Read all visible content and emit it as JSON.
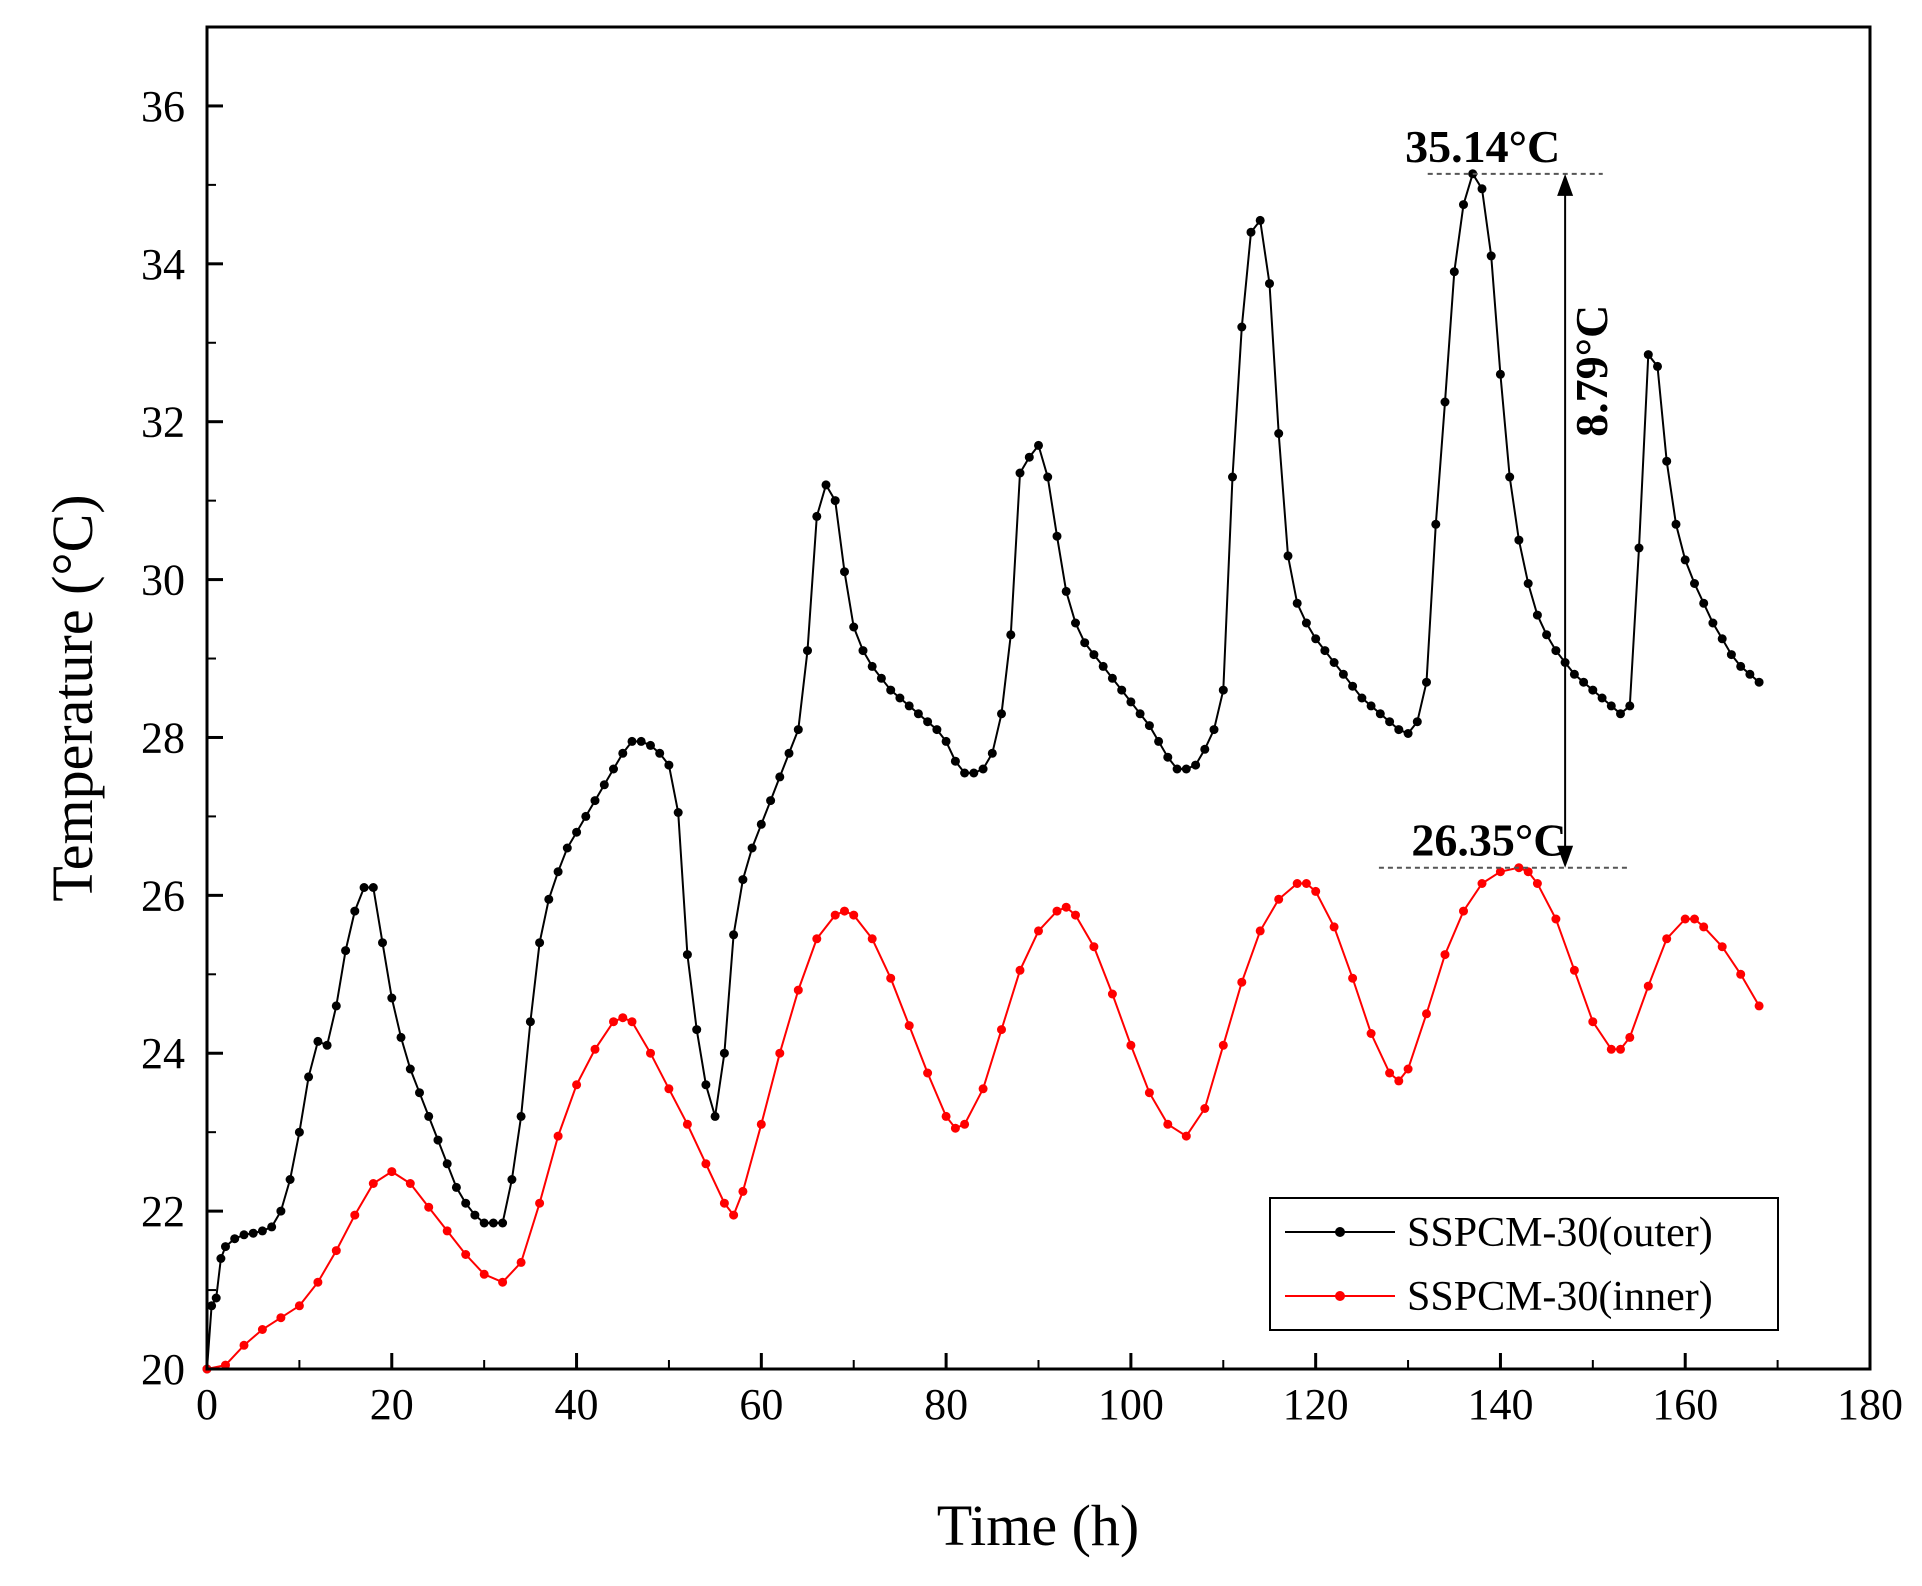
{
  "chart_data": {
    "type": "line",
    "title": "",
    "xlabel": "Time (h)",
    "ylabel": "Temperature (°C)",
    "xlim": [
      0,
      180
    ],
    "ylim": [
      20,
      37
    ],
    "xticks": [
      0,
      20,
      40,
      60,
      80,
      100,
      120,
      140,
      160,
      180
    ],
    "yticks": [
      20,
      22,
      24,
      26,
      28,
      30,
      32,
      34,
      36
    ],
    "grid": false,
    "legend_position": "bottom-right",
    "series": [
      {
        "name": "SSPCM-30(outer)",
        "color": "#000000",
        "points": [
          [
            0,
            20.0
          ],
          [
            0.5,
            20.8
          ],
          [
            1,
            20.9
          ],
          [
            1.5,
            21.4
          ],
          [
            2,
            21.55
          ],
          [
            3,
            21.65
          ],
          [
            4,
            21.7
          ],
          [
            5,
            21.72
          ],
          [
            6,
            21.75
          ],
          [
            7,
            21.8
          ],
          [
            8,
            22.0
          ],
          [
            9,
            22.4
          ],
          [
            10,
            23.0
          ],
          [
            11,
            23.7
          ],
          [
            12,
            24.15
          ],
          [
            13,
            24.1
          ],
          [
            14,
            24.6
          ],
          [
            15,
            25.3
          ],
          [
            16,
            25.8
          ],
          [
            17,
            26.1
          ],
          [
            18,
            26.1
          ],
          [
            19,
            25.4
          ],
          [
            20,
            24.7
          ],
          [
            21,
            24.2
          ],
          [
            22,
            23.8
          ],
          [
            23,
            23.5
          ],
          [
            24,
            23.2
          ],
          [
            25,
            22.9
          ],
          [
            26,
            22.6
          ],
          [
            27,
            22.3
          ],
          [
            28,
            22.1
          ],
          [
            29,
            21.95
          ],
          [
            30,
            21.85
          ],
          [
            31,
            21.85
          ],
          [
            32,
            21.85
          ],
          [
            33,
            22.4
          ],
          [
            34,
            23.2
          ],
          [
            35,
            24.4
          ],
          [
            36,
            25.4
          ],
          [
            37,
            25.95
          ],
          [
            38,
            26.3
          ],
          [
            39,
            26.6
          ],
          [
            40,
            26.8
          ],
          [
            41,
            27.0
          ],
          [
            42,
            27.2
          ],
          [
            43,
            27.4
          ],
          [
            44,
            27.6
          ],
          [
            45,
            27.8
          ],
          [
            46,
            27.95
          ],
          [
            47,
            27.95
          ],
          [
            48,
            27.9
          ],
          [
            49,
            27.8
          ],
          [
            50,
            27.65
          ],
          [
            51,
            27.05
          ],
          [
            52,
            25.25
          ],
          [
            53,
            24.3
          ],
          [
            54,
            23.6
          ],
          [
            55,
            23.2
          ],
          [
            56,
            24.0
          ],
          [
            57,
            25.5
          ],
          [
            58,
            26.2
          ],
          [
            59,
            26.6
          ],
          [
            60,
            26.9
          ],
          [
            61,
            27.2
          ],
          [
            62,
            27.5
          ],
          [
            63,
            27.8
          ],
          [
            64,
            28.1
          ],
          [
            65,
            29.1
          ],
          [
            66,
            30.8
          ],
          [
            67,
            31.2
          ],
          [
            68,
            31.0
          ],
          [
            69,
            30.1
          ],
          [
            70,
            29.4
          ],
          [
            71,
            29.1
          ],
          [
            72,
            28.9
          ],
          [
            73,
            28.75
          ],
          [
            74,
            28.6
          ],
          [
            75,
            28.5
          ],
          [
            76,
            28.4
          ],
          [
            77,
            28.3
          ],
          [
            78,
            28.2
          ],
          [
            79,
            28.1
          ],
          [
            80,
            27.95
          ],
          [
            81,
            27.7
          ],
          [
            82,
            27.55
          ],
          [
            83,
            27.55
          ],
          [
            84,
            27.6
          ],
          [
            85,
            27.8
          ],
          [
            86,
            28.3
          ],
          [
            87,
            29.3
          ],
          [
            88,
            31.35
          ],
          [
            89,
            31.55
          ],
          [
            90,
            31.7
          ],
          [
            91,
            31.3
          ],
          [
            92,
            30.55
          ],
          [
            93,
            29.85
          ],
          [
            94,
            29.45
          ],
          [
            95,
            29.2
          ],
          [
            96,
            29.05
          ],
          [
            97,
            28.9
          ],
          [
            98,
            28.75
          ],
          [
            99,
            28.6
          ],
          [
            100,
            28.45
          ],
          [
            101,
            28.3
          ],
          [
            102,
            28.15
          ],
          [
            103,
            27.95
          ],
          [
            104,
            27.75
          ],
          [
            105,
            27.6
          ],
          [
            106,
            27.6
          ],
          [
            107,
            27.65
          ],
          [
            108,
            27.85
          ],
          [
            109,
            28.1
          ],
          [
            110,
            28.6
          ],
          [
            111,
            31.3
          ],
          [
            112,
            33.2
          ],
          [
            113,
            34.4
          ],
          [
            114,
            34.55
          ],
          [
            115,
            33.75
          ],
          [
            116,
            31.85
          ],
          [
            117,
            30.3
          ],
          [
            118,
            29.7
          ],
          [
            119,
            29.45
          ],
          [
            120,
            29.25
          ],
          [
            121,
            29.1
          ],
          [
            122,
            28.95
          ],
          [
            123,
            28.8
          ],
          [
            124,
            28.65
          ],
          [
            125,
            28.5
          ],
          [
            126,
            28.4
          ],
          [
            127,
            28.3
          ],
          [
            128,
            28.2
          ],
          [
            129,
            28.1
          ],
          [
            130,
            28.05
          ],
          [
            131,
            28.2
          ],
          [
            132,
            28.7
          ],
          [
            133,
            30.7
          ],
          [
            134,
            32.25
          ],
          [
            135,
            33.9
          ],
          [
            136,
            34.75
          ],
          [
            137,
            35.14
          ],
          [
            138,
            34.95
          ],
          [
            139,
            34.1
          ],
          [
            140,
            32.6
          ],
          [
            141,
            31.3
          ],
          [
            142,
            30.5
          ],
          [
            143,
            29.95
          ],
          [
            144,
            29.55
          ],
          [
            145,
            29.3
          ],
          [
            146,
            29.1
          ],
          [
            147,
            28.95
          ],
          [
            148,
            28.8
          ],
          [
            149,
            28.7
          ],
          [
            150,
            28.6
          ],
          [
            151,
            28.5
          ],
          [
            152,
            28.4
          ],
          [
            153,
            28.3
          ],
          [
            154,
            28.4
          ],
          [
            155,
            30.4
          ],
          [
            156,
            32.85
          ],
          [
            157,
            32.7
          ],
          [
            158,
            31.5
          ],
          [
            159,
            30.7
          ],
          [
            160,
            30.25
          ],
          [
            161,
            29.95
          ],
          [
            162,
            29.7
          ],
          [
            163,
            29.45
          ],
          [
            164,
            29.25
          ],
          [
            165,
            29.05
          ],
          [
            166,
            28.9
          ],
          [
            167,
            28.8
          ],
          [
            168,
            28.7
          ]
        ]
      },
      {
        "name": "SSPCM-30(inner)",
        "color": "#ff0000",
        "points": [
          [
            0,
            20.0
          ],
          [
            2,
            20.05
          ],
          [
            4,
            20.3
          ],
          [
            6,
            20.5
          ],
          [
            8,
            20.65
          ],
          [
            10,
            20.8
          ],
          [
            12,
            21.1
          ],
          [
            14,
            21.5
          ],
          [
            16,
            21.95
          ],
          [
            18,
            22.35
          ],
          [
            20,
            22.5
          ],
          [
            22,
            22.35
          ],
          [
            24,
            22.05
          ],
          [
            26,
            21.75
          ],
          [
            28,
            21.45
          ],
          [
            30,
            21.2
          ],
          [
            32,
            21.1
          ],
          [
            34,
            21.35
          ],
          [
            36,
            22.1
          ],
          [
            38,
            22.95
          ],
          [
            40,
            23.6
          ],
          [
            42,
            24.05
          ],
          [
            44,
            24.4
          ],
          [
            45,
            24.45
          ],
          [
            46,
            24.4
          ],
          [
            48,
            24.0
          ],
          [
            50,
            23.55
          ],
          [
            52,
            23.1
          ],
          [
            54,
            22.6
          ],
          [
            56,
            22.1
          ],
          [
            57,
            21.95
          ],
          [
            58,
            22.25
          ],
          [
            60,
            23.1
          ],
          [
            62,
            24.0
          ],
          [
            64,
            24.8
          ],
          [
            66,
            25.45
          ],
          [
            68,
            25.75
          ],
          [
            69,
            25.8
          ],
          [
            70,
            25.75
          ],
          [
            72,
            25.45
          ],
          [
            74,
            24.95
          ],
          [
            76,
            24.35
          ],
          [
            78,
            23.75
          ],
          [
            80,
            23.2
          ],
          [
            81,
            23.05
          ],
          [
            82,
            23.1
          ],
          [
            84,
            23.55
          ],
          [
            86,
            24.3
          ],
          [
            88,
            25.05
          ],
          [
            90,
            25.55
          ],
          [
            92,
            25.8
          ],
          [
            93,
            25.85
          ],
          [
            94,
            25.75
          ],
          [
            96,
            25.35
          ],
          [
            98,
            24.75
          ],
          [
            100,
            24.1
          ],
          [
            102,
            23.5
          ],
          [
            104,
            23.1
          ],
          [
            106,
            22.95
          ],
          [
            108,
            23.3
          ],
          [
            110,
            24.1
          ],
          [
            112,
            24.9
          ],
          [
            114,
            25.55
          ],
          [
            116,
            25.95
          ],
          [
            118,
            26.15
          ],
          [
            119,
            26.15
          ],
          [
            120,
            26.05
          ],
          [
            122,
            25.6
          ],
          [
            124,
            24.95
          ],
          [
            126,
            24.25
          ],
          [
            128,
            23.75
          ],
          [
            129,
            23.65
          ],
          [
            130,
            23.8
          ],
          [
            132,
            24.5
          ],
          [
            134,
            25.25
          ],
          [
            136,
            25.8
          ],
          [
            138,
            26.15
          ],
          [
            140,
            26.3
          ],
          [
            142,
            26.35
          ],
          [
            143,
            26.3
          ],
          [
            144,
            26.15
          ],
          [
            146,
            25.7
          ],
          [
            148,
            25.05
          ],
          [
            150,
            24.4
          ],
          [
            152,
            24.05
          ],
          [
            153,
            24.05
          ],
          [
            154,
            24.2
          ],
          [
            156,
            24.85
          ],
          [
            158,
            25.45
          ],
          [
            160,
            25.7
          ],
          [
            161,
            25.7
          ],
          [
            162,
            25.6
          ],
          [
            164,
            25.35
          ],
          [
            166,
            25.0
          ],
          [
            168,
            24.6
          ]
        ]
      }
    ],
    "annotations": {
      "peak_outer": {
        "text": "35.14°C",
        "x": 137,
        "y": 35.14
      },
      "peak_inner": {
        "text": "26.35°C",
        "x": 142,
        "y": 26.35
      },
      "difference": {
        "text": "8.79°C",
        "x": 147,
        "y1": 26.35,
        "y2": 35.14
      }
    }
  }
}
